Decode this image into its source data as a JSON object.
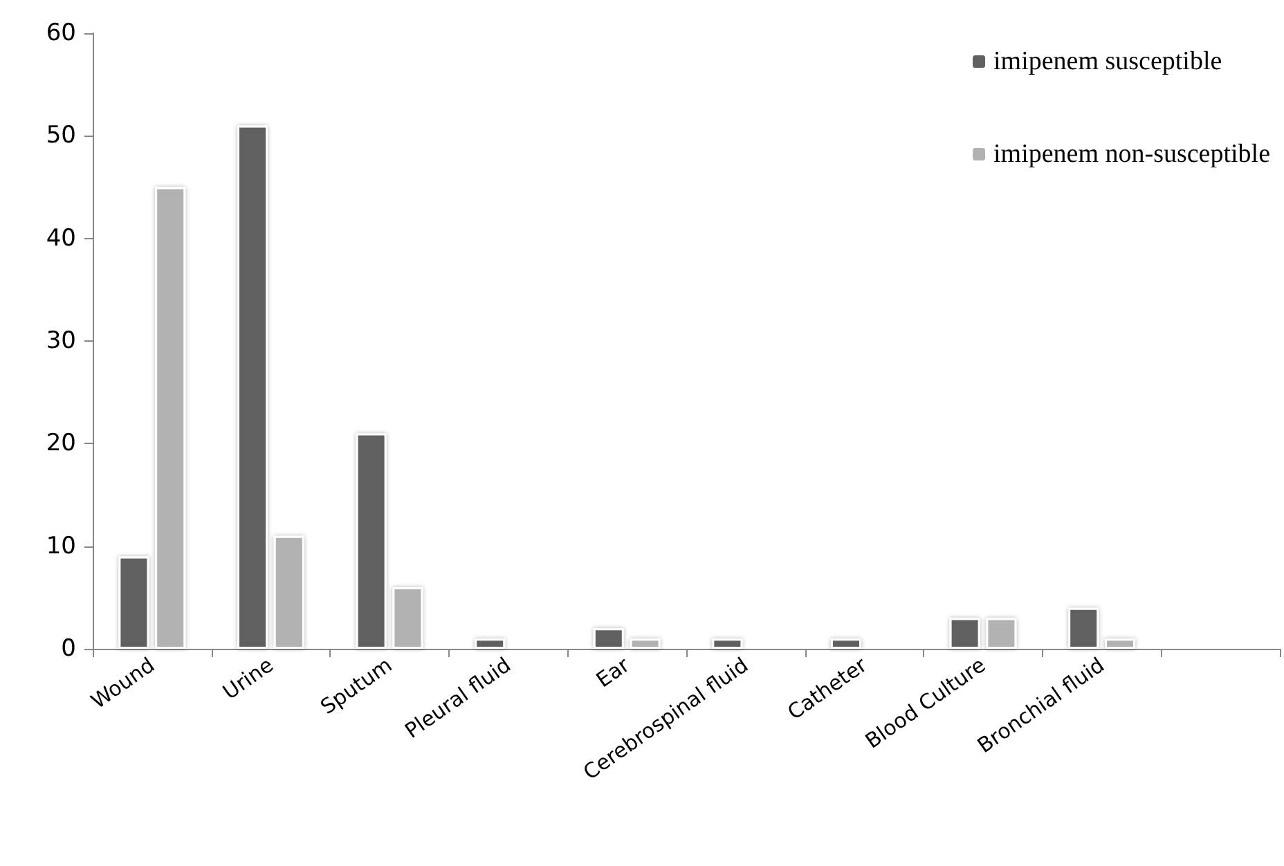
{
  "chart_data": {
    "type": "bar",
    "categories": [
      "Wound",
      "Urine",
      "Sputum",
      "Pleural fluid",
      "Ear",
      "Cerebrospinal fluid",
      "Catheter",
      "Blood Culture",
      "Bronchial fluid",
      null
    ],
    "series": [
      {
        "name": "imipenem susceptible",
        "color": "#606060",
        "values": [
          9,
          51,
          21,
          1,
          2,
          1,
          1,
          3,
          4,
          null
        ]
      },
      {
        "name": "imipenem non-susceptible",
        "color": "#b2b2b2",
        "values": [
          45,
          11,
          6,
          null,
          1,
          null,
          null,
          3,
          1,
          null
        ]
      }
    ],
    "ylim": [
      0,
      60
    ],
    "yticks": [
      0,
      10,
      20,
      30,
      40,
      50,
      60
    ],
    "grid": false,
    "legend": "top right"
  }
}
